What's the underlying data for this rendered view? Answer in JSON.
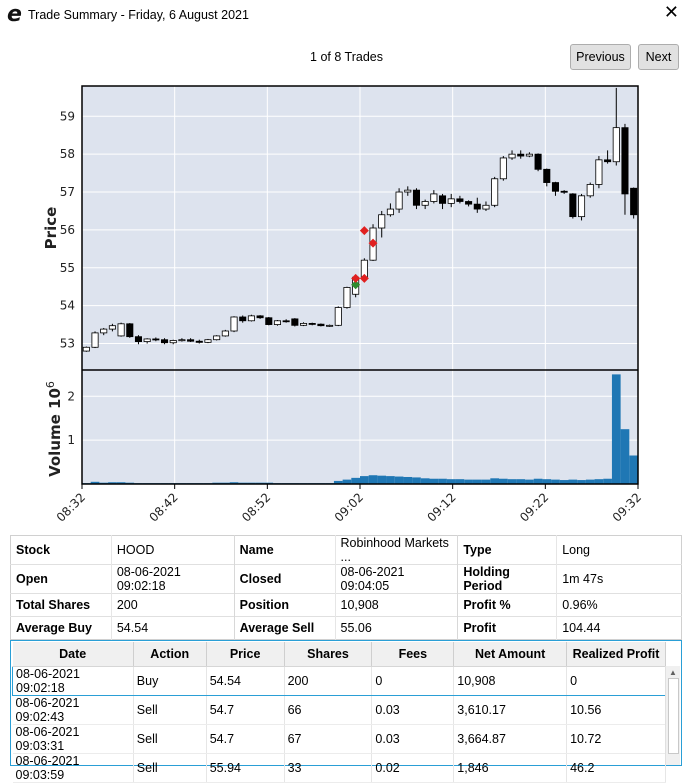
{
  "window": {
    "logo_letter": "e",
    "title": "Trade Summary - Friday, 6 August 2021",
    "close_glyph": "✕"
  },
  "nav": {
    "trade_count": "1 of 8 Trades",
    "previous_label": "Previous",
    "next_label": "Next"
  },
  "chart_data": {
    "type": "candlestick",
    "price_panel": {
      "ylabel": "Price",
      "ylim": [
        52.3,
        59.8
      ],
      "yticks": [
        53,
        54,
        55,
        56,
        57,
        58,
        59
      ],
      "grid": true
    },
    "volume_panel": {
      "ylabel": "Volume",
      "ylabel_exponent": "6",
      "ylim": [
        0,
        2.6
      ],
      "yticks": [
        1,
        2
      ],
      "units": "millions",
      "bar_color": "#1f77b4"
    },
    "x_tick_labels": [
      "08:32",
      "08:42",
      "08:52",
      "09:02",
      "09:12",
      "09:22",
      "09:32"
    ],
    "x_range_minutes": [
      0,
      60
    ],
    "bar_interval_minutes": 1,
    "candles": [
      {
        "t": 0,
        "o": 52.8,
        "h": 52.92,
        "l": 52.78,
        "c": 52.9,
        "v": 0.02
      },
      {
        "t": 1,
        "o": 52.9,
        "h": 53.32,
        "l": 52.88,
        "c": 53.28,
        "v": 0.05
      },
      {
        "t": 2,
        "o": 53.28,
        "h": 53.41,
        "l": 53.22,
        "c": 53.38,
        "v": 0.03
      },
      {
        "t": 3,
        "o": 53.38,
        "h": 53.52,
        "l": 53.32,
        "c": 53.47,
        "v": 0.04
      },
      {
        "t": 4,
        "o": 53.2,
        "h": 53.55,
        "l": 53.18,
        "c": 53.52,
        "v": 0.04
      },
      {
        "t": 5,
        "o": 53.52,
        "h": 53.54,
        "l": 53.15,
        "c": 53.18,
        "v": 0.03
      },
      {
        "t": 6,
        "o": 53.18,
        "h": 53.22,
        "l": 52.98,
        "c": 53.05,
        "v": 0.02
      },
      {
        "t": 7,
        "o": 53.05,
        "h": 53.14,
        "l": 53.0,
        "c": 53.12,
        "v": 0.02
      },
      {
        "t": 8,
        "o": 53.12,
        "h": 53.16,
        "l": 53.06,
        "c": 53.1,
        "v": 0.02
      },
      {
        "t": 9,
        "o": 53.1,
        "h": 53.14,
        "l": 52.98,
        "c": 53.02,
        "v": 0.02
      },
      {
        "t": 10,
        "o": 53.02,
        "h": 53.1,
        "l": 52.98,
        "c": 53.08,
        "v": 0.02
      },
      {
        "t": 11,
        "o": 53.08,
        "h": 53.14,
        "l": 53.05,
        "c": 53.1,
        "v": 0.02
      },
      {
        "t": 12,
        "o": 53.1,
        "h": 53.14,
        "l": 53.04,
        "c": 53.06,
        "v": 0.02
      },
      {
        "t": 13,
        "o": 53.06,
        "h": 53.1,
        "l": 53.0,
        "c": 53.03,
        "v": 0.02
      },
      {
        "t": 14,
        "o": 53.03,
        "h": 53.12,
        "l": 53.01,
        "c": 53.1,
        "v": 0.02
      },
      {
        "t": 15,
        "o": 53.1,
        "h": 53.22,
        "l": 53.08,
        "c": 53.2,
        "v": 0.03
      },
      {
        "t": 16,
        "o": 53.2,
        "h": 53.36,
        "l": 53.18,
        "c": 53.33,
        "v": 0.03
      },
      {
        "t": 17,
        "o": 53.33,
        "h": 53.72,
        "l": 53.3,
        "c": 53.7,
        "v": 0.04
      },
      {
        "t": 18,
        "o": 53.7,
        "h": 53.74,
        "l": 53.55,
        "c": 53.6,
        "v": 0.03
      },
      {
        "t": 19,
        "o": 53.6,
        "h": 53.76,
        "l": 53.58,
        "c": 53.73,
        "v": 0.03
      },
      {
        "t": 20,
        "o": 53.73,
        "h": 53.75,
        "l": 53.65,
        "c": 53.68,
        "v": 0.03
      },
      {
        "t": 21,
        "o": 53.68,
        "h": 53.7,
        "l": 53.48,
        "c": 53.5,
        "v": 0.03
      },
      {
        "t": 22,
        "o": 53.5,
        "h": 53.62,
        "l": 53.47,
        "c": 53.6,
        "v": 0.02
      },
      {
        "t": 23,
        "o": 53.6,
        "h": 53.64,
        "l": 53.55,
        "c": 53.58,
        "v": 0.02
      },
      {
        "t": 24,
        "o": 53.65,
        "h": 53.67,
        "l": 53.45,
        "c": 53.48,
        "v": 0.02
      },
      {
        "t": 25,
        "o": 53.48,
        "h": 53.56,
        "l": 53.46,
        "c": 53.53,
        "v": 0.02
      },
      {
        "t": 26,
        "o": 53.53,
        "h": 53.55,
        "l": 53.48,
        "c": 53.51,
        "v": 0.02
      },
      {
        "t": 27,
        "o": 53.51,
        "h": 53.53,
        "l": 53.45,
        "c": 53.47,
        "v": 0.02
      },
      {
        "t": 28,
        "o": 53.47,
        "h": 53.5,
        "l": 53.44,
        "c": 53.48,
        "v": 0.02
      },
      {
        "t": 29,
        "o": 53.48,
        "h": 53.98,
        "l": 53.46,
        "c": 53.95,
        "v": 0.07
      },
      {
        "t": 30,
        "o": 53.95,
        "h": 54.5,
        "l": 53.92,
        "c": 54.48,
        "v": 0.1
      },
      {
        "t": 31,
        "o": 54.3,
        "h": 54.8,
        "l": 54.22,
        "c": 54.75,
        "v": 0.14
      },
      {
        "t": 32,
        "o": 54.75,
        "h": 55.25,
        "l": 54.68,
        "c": 55.2,
        "v": 0.18
      },
      {
        "t": 33,
        "o": 55.2,
        "h": 56.15,
        "l": 55.18,
        "c": 56.05,
        "v": 0.2
      },
      {
        "t": 34,
        "o": 56.05,
        "h": 56.5,
        "l": 55.8,
        "c": 56.4,
        "v": 0.19
      },
      {
        "t": 35,
        "o": 56.4,
        "h": 56.7,
        "l": 56.35,
        "c": 56.55,
        "v": 0.18
      },
      {
        "t": 36,
        "o": 56.55,
        "h": 57.1,
        "l": 56.45,
        "c": 57.0,
        "v": 0.17
      },
      {
        "t": 37,
        "o": 57.0,
        "h": 57.15,
        "l": 56.9,
        "c": 57.05,
        "v": 0.16
      },
      {
        "t": 38,
        "o": 57.05,
        "h": 57.1,
        "l": 56.55,
        "c": 56.65,
        "v": 0.15
      },
      {
        "t": 39,
        "o": 56.65,
        "h": 56.8,
        "l": 56.55,
        "c": 56.75,
        "v": 0.13
      },
      {
        "t": 40,
        "o": 56.75,
        "h": 57.05,
        "l": 56.7,
        "c": 56.95,
        "v": 0.12
      },
      {
        "t": 41,
        "o": 56.9,
        "h": 56.95,
        "l": 56.55,
        "c": 56.7,
        "v": 0.12
      },
      {
        "t": 42,
        "o": 56.7,
        "h": 56.95,
        "l": 56.6,
        "c": 56.82,
        "v": 0.11
      },
      {
        "t": 43,
        "o": 56.82,
        "h": 56.9,
        "l": 56.7,
        "c": 56.75,
        "v": 0.11
      },
      {
        "t": 44,
        "o": 56.75,
        "h": 56.78,
        "l": 56.62,
        "c": 56.68,
        "v": 0.1
      },
      {
        "t": 45,
        "o": 56.68,
        "h": 56.85,
        "l": 56.45,
        "c": 56.55,
        "v": 0.1
      },
      {
        "t": 46,
        "o": 56.55,
        "h": 56.75,
        "l": 56.5,
        "c": 56.65,
        "v": 0.1
      },
      {
        "t": 47,
        "o": 56.65,
        "h": 57.4,
        "l": 56.6,
        "c": 57.35,
        "v": 0.13
      },
      {
        "t": 48,
        "o": 57.35,
        "h": 57.95,
        "l": 57.3,
        "c": 57.9,
        "v": 0.12
      },
      {
        "t": 49,
        "o": 57.9,
        "h": 58.1,
        "l": 57.85,
        "c": 58.0,
        "v": 0.11
      },
      {
        "t": 50,
        "o": 58.0,
        "h": 58.1,
        "l": 57.88,
        "c": 57.95,
        "v": 0.11
      },
      {
        "t": 51,
        "o": 57.95,
        "h": 58.05,
        "l": 57.92,
        "c": 58.0,
        "v": 0.1
      },
      {
        "t": 52,
        "o": 58.0,
        "h": 58.02,
        "l": 57.55,
        "c": 57.6,
        "v": 0.12
      },
      {
        "t": 53,
        "o": 57.6,
        "h": 57.62,
        "l": 57.15,
        "c": 57.25,
        "v": 0.11
      },
      {
        "t": 54,
        "o": 57.25,
        "h": 57.27,
        "l": 56.9,
        "c": 57.02,
        "v": 0.1
      },
      {
        "t": 55,
        "o": 57.02,
        "h": 57.05,
        "l": 56.95,
        "c": 57.0,
        "v": 0.09
      },
      {
        "t": 56,
        "o": 56.95,
        "h": 56.97,
        "l": 56.3,
        "c": 56.35,
        "v": 0.1
      },
      {
        "t": 57,
        "o": 56.35,
        "h": 56.95,
        "l": 56.25,
        "c": 56.9,
        "v": 0.09
      },
      {
        "t": 58,
        "o": 56.9,
        "h": 57.25,
        "l": 56.85,
        "c": 57.2,
        "v": 0.1
      },
      {
        "t": 59,
        "o": 57.2,
        "h": 57.95,
        "l": 57.1,
        "c": 57.85,
        "v": 0.11
      },
      {
        "t": 60,
        "o": 57.85,
        "h": 58.1,
        "l": 57.75,
        "c": 57.8,
        "v": 0.12
      },
      {
        "t": 61,
        "o": 57.8,
        "h": 59.75,
        "l": 57.7,
        "c": 58.7,
        "v": 2.5
      },
      {
        "t": 62,
        "o": 58.7,
        "h": 58.8,
        "l": 56.4,
        "c": 56.95,
        "v": 1.25
      },
      {
        "t": 63,
        "o": 57.1,
        "h": 57.12,
        "l": 56.3,
        "c": 56.4,
        "v": 0.65
      }
    ],
    "markers": [
      {
        "t": 31,
        "price": 54.55,
        "side": "buy",
        "color": "#2e8b2e"
      },
      {
        "t": 31,
        "price": 54.72,
        "side": "sell",
        "color": "#e02020"
      },
      {
        "t": 32,
        "price": 54.72,
        "side": "sell",
        "color": "#e02020"
      },
      {
        "t": 32,
        "price": 55.98,
        "side": "sell",
        "color": "#e02020"
      },
      {
        "t": 33,
        "price": 55.65,
        "side": "sell",
        "color": "#e02020"
      }
    ]
  },
  "summary": {
    "rows": [
      [
        {
          "label": "Stock",
          "value": "HOOD"
        },
        {
          "label": "Name",
          "value": "Robinhood Markets ..."
        },
        {
          "label": "Type",
          "value": "Long"
        }
      ],
      [
        {
          "label": "Open",
          "value": "08-06-2021 09:02:18"
        },
        {
          "label": "Closed",
          "value": "08-06-2021 09:04:05"
        },
        {
          "label": "Holding Period",
          "value": "1m 47s"
        }
      ],
      [
        {
          "label": "Total Shares",
          "value": "200"
        },
        {
          "label": "Position",
          "value": "10,908"
        },
        {
          "label": "Profit %",
          "value": "0.96%"
        }
      ],
      [
        {
          "label": "Average Buy",
          "value": "54.54"
        },
        {
          "label": "Average Sell",
          "value": "55.06"
        },
        {
          "label": "Profit",
          "value": "104.44"
        }
      ]
    ]
  },
  "trades": {
    "columns": [
      "Date",
      "Action",
      "Price",
      "Shares",
      "Fees",
      "Net Amount",
      "Realized Profit"
    ],
    "rows": [
      [
        "08-06-2021 09:02:18",
        "Buy",
        "54.54",
        "200",
        "0",
        "10,908",
        "0"
      ],
      [
        "08-06-2021 09:02:43",
        "Sell",
        "54.7",
        "66",
        "0.03",
        "3,610.17",
        "10.56"
      ],
      [
        "08-06-2021 09:03:31",
        "Sell",
        "54.7",
        "67",
        "0.03",
        "3,664.87",
        "10.72"
      ],
      [
        "08-06-2021 09:03:59",
        "Sell",
        "55.94",
        "33",
        "0.02",
        "1,846",
        "46.2"
      ]
    ],
    "selected_row": 0
  }
}
